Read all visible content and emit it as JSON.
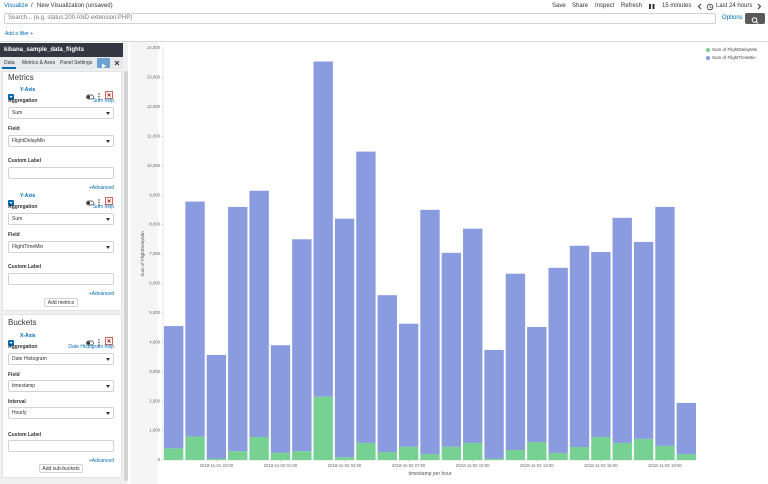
{
  "header": {
    "breadcrumb": {
      "root": "Visualize",
      "separator": "/",
      "current": "New Visualization (unsaved)"
    },
    "actions": [
      "Save",
      "Share",
      "Inspect",
      "Refresh"
    ],
    "refresh_interval": "15 minutes",
    "time_range": "Last 24 hours"
  },
  "search": {
    "placeholder": "Search... (e.g. status:200 AND extension:PHP)",
    "options": "Options"
  },
  "filter": "Add a filter +",
  "sidebar": {
    "index": "kibana_sample_data_flights",
    "tabs": [
      "Data",
      "Metrics & Axes",
      "Panel Settings"
    ],
    "metrics": {
      "title": "Metrics",
      "items": [
        {
          "axis": "Y-Axis",
          "aggregation_label": "Aggregation",
          "help": "Sum help",
          "aggregation": "Sum",
          "field_label": "Field",
          "field": "FlightDelayMin",
          "custom_label": "Custom Label",
          "advanced": "+Advanced"
        },
        {
          "axis": "Y-Axis",
          "aggregation_label": "Aggregation",
          "help": "Sum help",
          "aggregation": "Sum",
          "field_label": "Field",
          "field": "FlightTimeMin",
          "custom_label": "Custom Label",
          "advanced": "+Advanced"
        }
      ],
      "add": "Add metrics"
    },
    "buckets": {
      "title": "Buckets",
      "axis": "X-Axis",
      "aggregation_label": "Aggregation",
      "help": "Date Histogram help",
      "aggregation": "Date Histogram",
      "field_label": "Field",
      "field": "timestamp",
      "interval_label": "Interval",
      "interval": "Hourly",
      "custom_label": "Custom Label",
      "advanced": "+Advanced",
      "add": "Add sub-buckets"
    }
  },
  "chart_data": {
    "type": "bar",
    "stacked": true,
    "x_label": "timestamp per hour",
    "y_label": "Sum of FlightDelayMin",
    "categories": [
      null,
      null,
      "2018-11-01 22:00",
      null,
      null,
      "2018-11-02 01:00",
      null,
      null,
      "2018-11-02 04:00",
      null,
      null,
      "2018-11-02 07:00",
      null,
      null,
      "2018-11-02 10:00",
      null,
      null,
      "2018-11-02 13:00",
      null,
      null,
      "2018-11-02 16:00",
      null,
      null,
      "2018-11-02 19:00",
      null
    ],
    "series": [
      {
        "name": "Sum of FlightDelayMin",
        "color": "#76d193",
        "values": [
          400,
          800,
          50,
          300,
          780,
          250,
          300,
          2150,
          100,
          580,
          270,
          450,
          200,
          450,
          580,
          50,
          340,
          610,
          240,
          440,
          780,
          580,
          720,
          480,
          200
        ]
      },
      {
        "name": "Sum of FlightTimeMin",
        "color": "#8a9be0",
        "values": [
          4150,
          7980,
          3520,
          8300,
          8370,
          3650,
          7200,
          11390,
          8100,
          9900,
          5330,
          4180,
          8300,
          6590,
          7280,
          3690,
          5990,
          3910,
          6290,
          6840,
          6290,
          7650,
          6690,
          8120,
          1740
        ]
      }
    ],
    "ylim": [
      0,
      14000
    ],
    "yticks": [
      0,
      {
        "value": 1000,
        "label": "1,000"
      },
      {
        "value": 2000,
        "label": "2,000"
      },
      {
        "value": 3000,
        "label": "3,000"
      },
      {
        "value": 4000,
        "label": "4,000"
      },
      {
        "value": 5000,
        "label": "5,000"
      },
      {
        "value": 6000,
        "label": "6,000"
      },
      {
        "value": 7000,
        "label": "7,000"
      },
      {
        "value": 8000,
        "label": "8,000"
      },
      {
        "value": 9000,
        "label": "9,000"
      },
      {
        "value": 10000,
        "label": "10,000"
      },
      {
        "value": 11000,
        "label": "11,000"
      },
      {
        "value": 12000,
        "label": "12,000"
      },
      {
        "value": 13000,
        "label": "13,000"
      },
      {
        "value": 14000,
        "label": "14,000"
      }
    ],
    "grid": false,
    "legend": "top-right"
  }
}
